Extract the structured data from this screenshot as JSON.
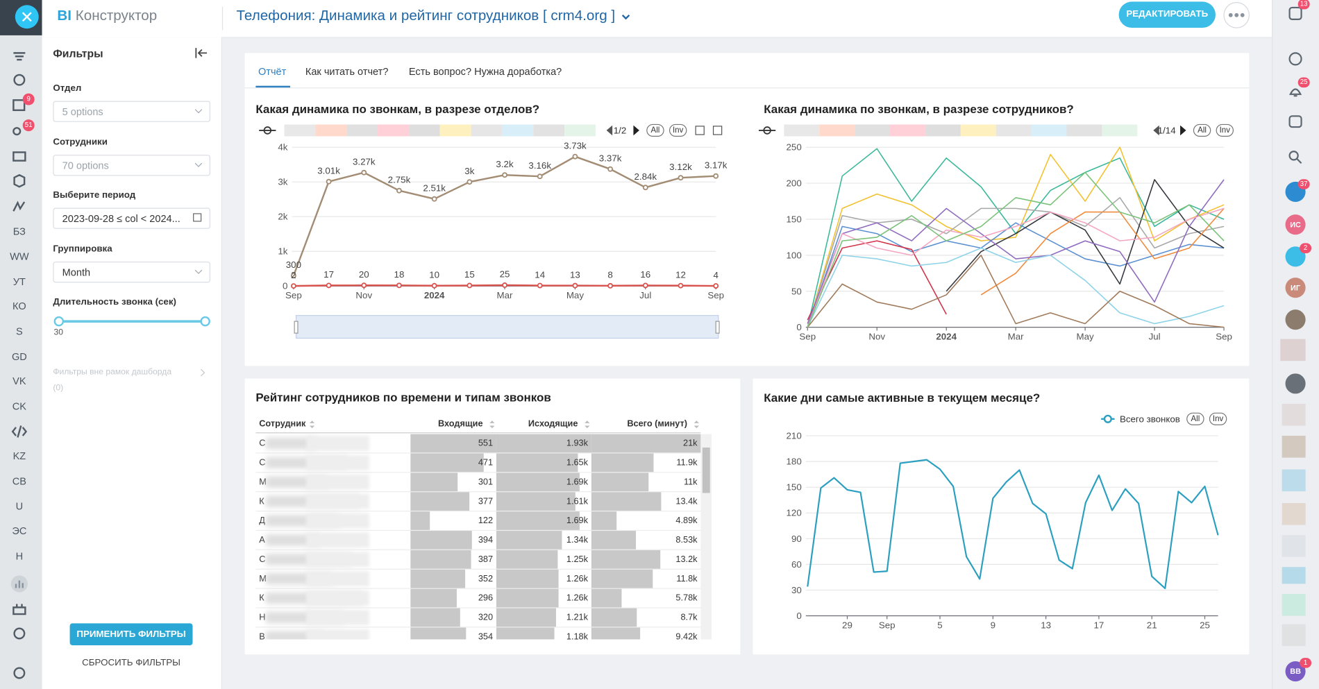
{
  "header": {
    "brand_prefix": "BI",
    "brand_name": "Конструктор",
    "title": "Телефония: Динамика и рейтинг сотрудников [ crm4.org ]",
    "edit_button": "РЕДАКТИРОВАТЬ"
  },
  "left_nav": {
    "labels": [
      "БЗ",
      "WW",
      "УТ",
      "КО",
      "S",
      "GD",
      "VK",
      "CK",
      "KZ",
      "CB",
      "U",
      "ЭС",
      "H"
    ],
    "badges": [
      "9",
      "51"
    ]
  },
  "filters": {
    "title": "Фильтры",
    "fields": [
      {
        "label": "Отдел",
        "value": "5 options"
      },
      {
        "label": "Сотрудники",
        "value": "70 options"
      },
      {
        "label": "Выберите период",
        "value": "2023-09-28 ≤ col < 2024..."
      },
      {
        "label": "Группировка",
        "value": "Month"
      }
    ],
    "duration_label": "Длительность звонка (сек)",
    "duration_min": "30",
    "outside_filters": "Фильтры вне рамок дашборда",
    "outside_count": "(0)",
    "apply": "ПРИМЕНИТЬ ФИЛЬТРЫ",
    "reset": "СБРОСИТЬ ФИЛЬТРЫ"
  },
  "tabs": [
    "Отчёт",
    "Как читать отчет?",
    "Есть вопрос? Нужна доработка?"
  ],
  "right_bar": {
    "badges": [
      "13",
      "25",
      "37",
      "2",
      "1"
    ],
    "avatars": [
      "ИС",
      "ИГ",
      "ВВ"
    ]
  },
  "chart_data": [
    {
      "type": "line",
      "title": "Какая динамика по звонкам, в разрезе отделов?",
      "categories": [
        "Sep",
        null,
        "Nov",
        null,
        "2024",
        null,
        "Mar",
        null,
        "May",
        null,
        "Jul",
        null,
        "Sep"
      ],
      "ylim": [
        0,
        4000
      ],
      "yticks": [
        0,
        {
          "value": 1000,
          "label": "1k"
        },
        {
          "value": 2000,
          "label": "2k"
        },
        {
          "value": 3000,
          "label": "3k"
        },
        {
          "value": 4000,
          "label": "4k"
        }
      ],
      "grid": true,
      "markers": true,
      "data_labels": true,
      "pager": "1/2",
      "all_label": "All",
      "inv_label": "Inv",
      "series": [
        {
          "color": "#a38c74",
          "values": [
            300,
            3010,
            3270,
            2750,
            2510,
            3000,
            3200,
            3160,
            3730,
            3370,
            2840,
            3120,
            3170
          ],
          "value_labels": [
            "300",
            "3.01k",
            "3.27k",
            "2.75k",
            "2.51k",
            "3k",
            "3.2k",
            "3.16k",
            "3.73k",
            "3.37k",
            "2.84k",
            "3.12k",
            "3.17k"
          ]
        },
        {
          "color": "#d9534f",
          "values": [
            2,
            17,
            20,
            18,
            10,
            15,
            25,
            14,
            13,
            8,
            16,
            12,
            4
          ]
        }
      ]
    },
    {
      "type": "line",
      "title": "Какая динамика по звонкам, в разрезе сотрудников?",
      "categories": [
        "Sep",
        null,
        "Nov",
        null,
        "2024",
        null,
        "Mar",
        null,
        "May",
        null,
        "Jul",
        null,
        "Sep"
      ],
      "ylim": [
        0,
        250
      ],
      "yticks": [
        0,
        50,
        100,
        150,
        200,
        250
      ],
      "grid": true,
      "pager": "1/14",
      "all_label": "All",
      "inv_label": "Inv",
      "series": [
        {
          "color": "#3cb89a",
          "values": [
            0,
            210,
            248,
            175,
            235,
            195,
            130,
            190,
            215,
            235,
            140,
            170,
            150
          ]
        },
        {
          "color": "#f2c230",
          "values": [
            0,
            165,
            185,
            170,
            140,
            120,
            125,
            240,
            175,
            250,
            120,
            150,
            170
          ]
        },
        {
          "color": "#5b8fd1",
          "values": [
            0,
            140,
            130,
            105,
            120,
            110,
            145,
            120,
            95,
            85,
            100,
            115,
            110
          ]
        },
        {
          "color": "#a8a8a8",
          "values": [
            0,
            155,
            145,
            150,
            130,
            165,
            165,
            160,
            140,
            180,
            110,
            130,
            140
          ]
        },
        {
          "color": "#34383d",
          "values": [
            null,
            null,
            null,
            null,
            50,
            105,
            130,
            160,
            135,
            60,
            205,
            140,
            110
          ]
        },
        {
          "color": "#f08a3c",
          "values": [
            null,
            null,
            null,
            null,
            null,
            45,
            75,
            130,
            160,
            160,
            95,
            110,
            165
          ]
        },
        {
          "color": "#d0344a",
          "values": [
            10,
            110,
            120,
            108,
            18,
            null,
            null,
            null,
            null,
            null,
            null,
            null,
            null
          ]
        },
        {
          "color": "#8e6bbf",
          "values": [
            5,
            130,
            145,
            120,
            165,
            130,
            95,
            100,
            120,
            105,
            35,
            140,
            205
          ]
        },
        {
          "color": "#8fd3e8",
          "values": [
            0,
            100,
            95,
            85,
            90,
            110,
            90,
            100,
            65,
            20,
            5,
            15,
            30
          ]
        },
        {
          "color": "#a07a5a",
          "values": [
            0,
            60,
            35,
            25,
            45,
            100,
            5,
            20,
            5,
            50,
            30,
            5,
            0
          ]
        },
        {
          "color": "#f4a6c0",
          "values": [
            0,
            130,
            110,
            100,
            135,
            125,
            140,
            160,
            145,
            120,
            125,
            150,
            165
          ]
        },
        {
          "color": "#7ac27a",
          "values": [
            0,
            120,
            125,
            155,
            120,
            140,
            180,
            170,
            215,
            160,
            145,
            170,
            120
          ]
        }
      ]
    },
    {
      "type": "line",
      "title": "Какие дни самые активные в текущем месяце?",
      "categories": [
        null,
        null,
        null,
        "29",
        null,
        null,
        "Sep",
        null,
        null,
        null,
        "5",
        null,
        null,
        null,
        "9",
        null,
        null,
        null,
        "13",
        null,
        null,
        null,
        "17",
        null,
        null,
        null,
        "21",
        null,
        null,
        null,
        "25",
        null
      ],
      "ylim": [
        0,
        210
      ],
      "yticks": [
        0,
        30,
        60,
        90,
        120,
        150,
        180,
        210
      ],
      "grid": true,
      "legend": "top-right",
      "all_label": "All",
      "inv_label": "Inv",
      "series": [
        {
          "name": "Всего звонков",
          "color": "#2a9fc0",
          "values": [
            34,
            149,
            161,
            147,
            144,
            51,
            52,
            178,
            180,
            182,
            171,
            151,
            69,
            43,
            137,
            156,
            170,
            131,
            119,
            65,
            55,
            132,
            164,
            123,
            148,
            131,
            46,
            32,
            145,
            132,
            151,
            94
          ]
        }
      ]
    }
  ],
  "table": {
    "title": "Рейтинг сотрудников по времени и типам звонков",
    "columns": [
      "Сотрудник",
      "Входящие",
      "Исходящие",
      "Всего (минут)"
    ],
    "rows": [
      {
        "name": "С",
        "values": [
          551,
          1930,
          21000
        ],
        "value_labels": [
          "551",
          "1.93k",
          "21k"
        ]
      },
      {
        "name": "С",
        "values": [
          471,
          1650,
          11900
        ],
        "value_labels": [
          "471",
          "1.65k",
          "11.9k"
        ]
      },
      {
        "name": "М",
        "values": [
          301,
          1690,
          11000
        ],
        "value_labels": [
          "301",
          "1.69k",
          "11k"
        ]
      },
      {
        "name": "К",
        "values": [
          377,
          1610,
          13400
        ],
        "value_labels": [
          "377",
          "1.61k",
          "13.4k"
        ]
      },
      {
        "name": "Д",
        "values": [
          122,
          1690,
          4890
        ],
        "value_labels": [
          "122",
          "1.69k",
          "4.89k"
        ]
      },
      {
        "name": "А",
        "values": [
          394,
          1340,
          8530
        ],
        "value_labels": [
          "394",
          "1.34k",
          "8.53k"
        ]
      },
      {
        "name": "С",
        "values": [
          387,
          1250,
          13200
        ],
        "value_labels": [
          "387",
          "1.25k",
          "13.2k"
        ]
      },
      {
        "name": "М",
        "values": [
          352,
          1260,
          11800
        ],
        "value_labels": [
          "352",
          "1.26k",
          "11.8k"
        ]
      },
      {
        "name": "К",
        "values": [
          296,
          1260,
          5780
        ],
        "value_labels": [
          "296",
          "1.26k",
          "5.78k"
        ]
      },
      {
        "name": "Н",
        "values": [
          320,
          1210,
          8700
        ],
        "value_labels": [
          "320",
          "1.21k",
          "8.7k"
        ]
      },
      {
        "name": "В",
        "values": [
          354,
          1180,
          9420
        ],
        "value_labels": [
          "354",
          "1.18k",
          "9.42k"
        ]
      }
    ]
  }
}
